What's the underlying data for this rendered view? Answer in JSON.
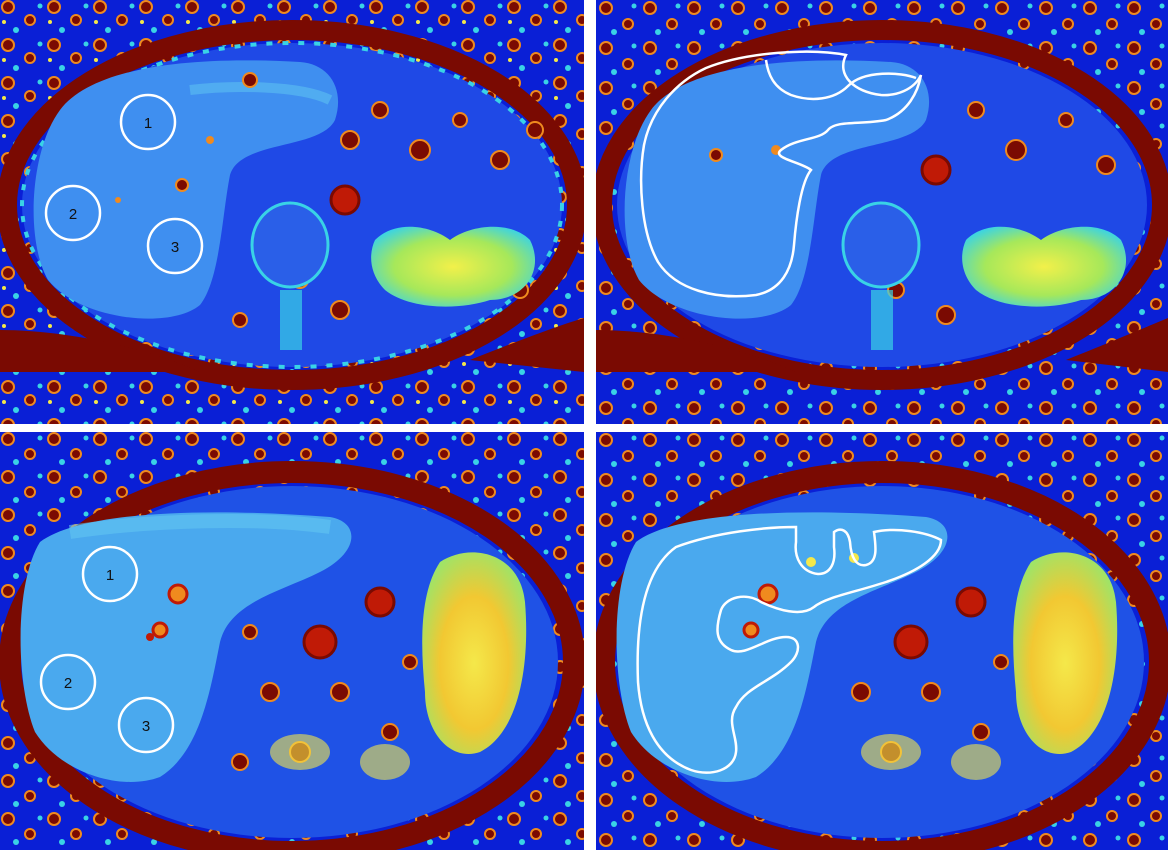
{
  "panels": [
    {
      "id": "top-left",
      "roi_labels": [
        "1",
        "2",
        "3"
      ]
    },
    {
      "id": "top-right",
      "roi_labels": []
    },
    {
      "id": "bottom-left",
      "roi_labels": [
        "1",
        "2",
        "3"
      ]
    },
    {
      "id": "bottom-right",
      "roi_labels": []
    }
  ],
  "colors": {
    "background_deep_blue": "#0a1fd6",
    "tissue_blue": "#3f8ff0",
    "liver_light_blue": "#4aa9ee",
    "cyan": "#39d3e6",
    "green": "#7ee07a",
    "yellow": "#f4e84a",
    "orange": "#f08a1e",
    "dark_red": "#7a0a02",
    "roi_outline": "#ffffff"
  }
}
